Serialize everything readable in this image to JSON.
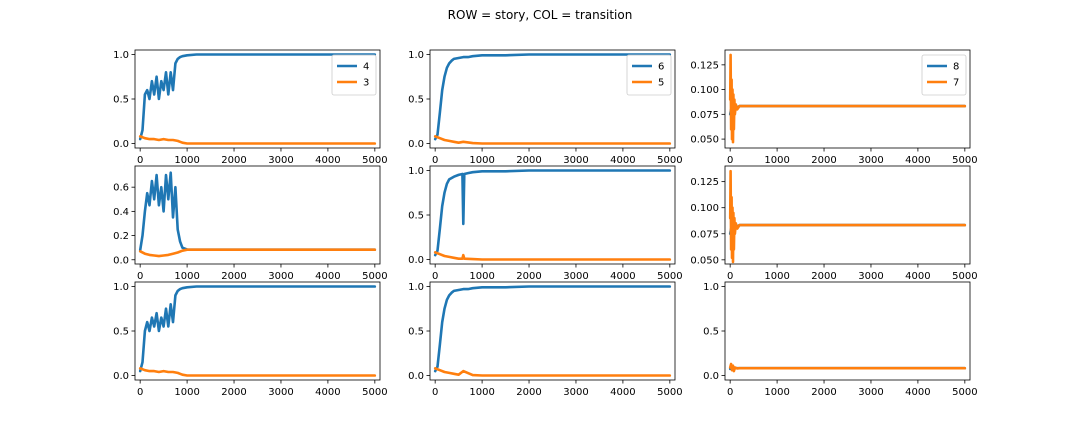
{
  "figure": {
    "title": "ROW = story, COL = transition",
    "colors": {
      "blue": "#1f77b4",
      "orange": "#ff7f0e"
    }
  },
  "chart_data": [
    {
      "type": "line",
      "row": 0,
      "col": 0,
      "xlim": [
        -110,
        5110
      ],
      "ylim": [
        -0.05,
        1.05
      ],
      "xticks": [
        0,
        1000,
        2000,
        3000,
        4000,
        5000
      ],
      "yticks": [
        0.0,
        0.5,
        1.0
      ],
      "ytick_labels": [
        "0.0",
        "0.5",
        "1.0"
      ],
      "legend": {
        "placement": "upper right",
        "entries": [
          "4",
          "3"
        ]
      },
      "series": [
        {
          "name": "4",
          "color": "#1f77b4",
          "x": [
            0,
            50,
            100,
            150,
            200,
            250,
            300,
            350,
            400,
            450,
            500,
            550,
            600,
            650,
            700,
            750,
            800,
            850,
            900,
            1000,
            1200,
            1500,
            2000,
            5000
          ],
          "y": [
            0.05,
            0.15,
            0.55,
            0.6,
            0.5,
            0.7,
            0.55,
            0.75,
            0.5,
            0.7,
            0.6,
            0.8,
            0.55,
            0.8,
            0.6,
            0.9,
            0.95,
            0.97,
            0.98,
            0.99,
            1.0,
            1.0,
            1.0,
            1.0
          ]
        },
        {
          "name": "3",
          "color": "#ff7f0e",
          "x": [
            0,
            100,
            200,
            300,
            400,
            500,
            600,
            700,
            800,
            850,
            900,
            1000,
            2000,
            5000
          ],
          "y": [
            0.08,
            0.06,
            0.05,
            0.05,
            0.04,
            0.05,
            0.04,
            0.04,
            0.03,
            0.02,
            0.01,
            0.0,
            0.0,
            0.0
          ]
        }
      ]
    },
    {
      "type": "line",
      "row": 0,
      "col": 1,
      "xlim": [
        -110,
        5110
      ],
      "ylim": [
        -0.05,
        1.05
      ],
      "xticks": [
        0,
        1000,
        2000,
        3000,
        4000,
        5000
      ],
      "yticks": [
        0.0,
        0.5,
        1.0
      ],
      "ytick_labels": [
        "0.0",
        "0.5",
        "1.0"
      ],
      "legend": {
        "placement": "upper right",
        "entries": [
          "6",
          "5"
        ]
      },
      "series": [
        {
          "name": "6",
          "color": "#1f77b4",
          "x": [
            0,
            50,
            100,
            150,
            200,
            250,
            300,
            350,
            400,
            500,
            600,
            700,
            800,
            1000,
            1500,
            2000,
            3000,
            5000
          ],
          "y": [
            0.05,
            0.1,
            0.35,
            0.6,
            0.75,
            0.85,
            0.9,
            0.93,
            0.95,
            0.96,
            0.97,
            0.97,
            0.98,
            0.99,
            0.99,
            1.0,
            1.0,
            1.0
          ]
        },
        {
          "name": "5",
          "color": "#ff7f0e",
          "x": [
            0,
            100,
            200,
            300,
            400,
            500,
            600,
            800,
            1000,
            2000,
            5000
          ],
          "y": [
            0.08,
            0.06,
            0.04,
            0.03,
            0.02,
            0.01,
            0.02,
            0.005,
            0.0,
            0.0,
            0.0
          ]
        }
      ]
    },
    {
      "type": "line",
      "row": 0,
      "col": 2,
      "xlim": [
        -110,
        5110
      ],
      "ylim": [
        0.041,
        0.14
      ],
      "xticks": [
        0,
        1000,
        2000,
        3000,
        4000,
        5000
      ],
      "yticks": [
        0.05,
        0.075,
        0.1,
        0.125
      ],
      "ytick_labels": [
        "0.050",
        "0.075",
        "0.100",
        "0.125"
      ],
      "legend": {
        "placement": "upper right",
        "entries": [
          "8",
          "7"
        ]
      },
      "series": [
        {
          "name": "8",
          "color": "#1f77b4",
          "x": [
            0,
            20,
            40,
            60,
            80,
            100,
            150,
            200,
            300,
            500,
            5000
          ],
          "y": [
            0.075,
            0.08,
            0.077,
            0.082,
            0.079,
            0.083,
            0.082,
            0.0833,
            0.0833,
            0.0833,
            0.0833
          ]
        },
        {
          "name": "7",
          "color": "#ff7f0e",
          "x": [
            0,
            10,
            20,
            30,
            40,
            50,
            60,
            70,
            80,
            90,
            100,
            120,
            150,
            200,
            300,
            5000
          ],
          "y": [
            0.09,
            0.135,
            0.06,
            0.11,
            0.05,
            0.1,
            0.047,
            0.095,
            0.06,
            0.09,
            0.075,
            0.085,
            0.08,
            0.0833,
            0.0833,
            0.0833
          ]
        }
      ]
    },
    {
      "type": "line",
      "row": 1,
      "col": 0,
      "xlim": [
        -110,
        5110
      ],
      "ylim": [
        -0.035,
        0.775
      ],
      "xticks": [
        0,
        1000,
        2000,
        3000,
        4000,
        5000
      ],
      "yticks": [
        0.0,
        0.2,
        0.4,
        0.6
      ],
      "ytick_labels": [
        "0.0",
        "0.2",
        "0.4",
        "0.6"
      ],
      "legend": null,
      "series": [
        {
          "name": "",
          "color": "#1f77b4",
          "x": [
            0,
            50,
            100,
            150,
            200,
            250,
            300,
            350,
            400,
            450,
            500,
            550,
            600,
            650,
            700,
            750,
            800,
            850,
            900,
            1000,
            2000,
            5000
          ],
          "y": [
            0.08,
            0.2,
            0.4,
            0.55,
            0.45,
            0.65,
            0.5,
            0.7,
            0.45,
            0.6,
            0.4,
            0.7,
            0.5,
            0.72,
            0.35,
            0.6,
            0.25,
            0.15,
            0.1,
            0.085,
            0.083,
            0.083
          ]
        },
        {
          "name": "",
          "color": "#ff7f0e",
          "x": [
            0,
            100,
            200,
            300,
            400,
            500,
            600,
            700,
            800,
            900,
            1000,
            2000,
            5000
          ],
          "y": [
            0.07,
            0.05,
            0.04,
            0.035,
            0.03,
            0.035,
            0.04,
            0.05,
            0.06,
            0.075,
            0.083,
            0.083,
            0.083
          ]
        }
      ]
    },
    {
      "type": "line",
      "row": 1,
      "col": 1,
      "xlim": [
        -110,
        5110
      ],
      "ylim": [
        -0.05,
        1.05
      ],
      "xticks": [
        0,
        1000,
        2000,
        3000,
        4000,
        5000
      ],
      "yticks": [
        0.0,
        0.5,
        1.0
      ],
      "ytick_labels": [
        "0.0",
        "0.5",
        "1.0"
      ],
      "legend": null,
      "series": [
        {
          "name": "",
          "color": "#1f77b4",
          "x": [
            0,
            50,
            100,
            150,
            200,
            250,
            300,
            400,
            500,
            580,
            600,
            620,
            700,
            800,
            1000,
            1500,
            2000,
            3000,
            5000
          ],
          "y": [
            0.05,
            0.1,
            0.35,
            0.6,
            0.75,
            0.85,
            0.9,
            0.93,
            0.95,
            0.96,
            0.4,
            0.96,
            0.97,
            0.98,
            0.99,
            0.99,
            1.0,
            1.0,
            1.0
          ]
        },
        {
          "name": "",
          "color": "#ff7f0e",
          "x": [
            0,
            100,
            200,
            300,
            400,
            500,
            580,
            600,
            620,
            800,
            1000,
            2000,
            5000
          ],
          "y": [
            0.08,
            0.06,
            0.04,
            0.03,
            0.02,
            0.01,
            0.01,
            0.05,
            0.01,
            0.005,
            0.0,
            0.0,
            0.0
          ]
        }
      ]
    },
    {
      "type": "line",
      "row": 1,
      "col": 2,
      "xlim": [
        -110,
        5110
      ],
      "ylim": [
        0.046,
        0.14
      ],
      "xticks": [
        0,
        1000,
        2000,
        3000,
        4000,
        5000
      ],
      "yticks": [
        0.05,
        0.075,
        0.1,
        0.125
      ],
      "ytick_labels": [
        "0.050",
        "0.075",
        "0.100",
        "0.125"
      ],
      "legend": null,
      "series": [
        {
          "name": "",
          "color": "#1f77b4",
          "x": [
            0,
            20,
            40,
            60,
            80,
            100,
            150,
            200,
            300,
            500,
            5000
          ],
          "y": [
            0.075,
            0.08,
            0.077,
            0.082,
            0.079,
            0.083,
            0.082,
            0.0833,
            0.0833,
            0.0833,
            0.0833
          ]
        },
        {
          "name": "",
          "color": "#ff7f0e",
          "x": [
            0,
            10,
            20,
            30,
            40,
            50,
            60,
            70,
            80,
            90,
            100,
            120,
            150,
            200,
            300,
            5000
          ],
          "y": [
            0.09,
            0.135,
            0.06,
            0.11,
            0.052,
            0.1,
            0.048,
            0.095,
            0.06,
            0.09,
            0.075,
            0.085,
            0.08,
            0.0833,
            0.0833,
            0.0833
          ]
        }
      ]
    },
    {
      "type": "line",
      "row": 2,
      "col": 0,
      "xlim": [
        -110,
        5110
      ],
      "ylim": [
        -0.05,
        1.05
      ],
      "xticks": [
        0,
        1000,
        2000,
        3000,
        4000,
        5000
      ],
      "yticks": [
        0.0,
        0.5,
        1.0
      ],
      "ytick_labels": [
        "0.0",
        "0.5",
        "1.0"
      ],
      "legend": null,
      "series": [
        {
          "name": "",
          "color": "#1f77b4",
          "x": [
            0,
            50,
            100,
            150,
            200,
            250,
            300,
            350,
            400,
            450,
            500,
            550,
            600,
            650,
            700,
            750,
            800,
            850,
            900,
            1000,
            1200,
            1500,
            2000,
            5000
          ],
          "y": [
            0.05,
            0.15,
            0.5,
            0.6,
            0.5,
            0.65,
            0.55,
            0.7,
            0.5,
            0.65,
            0.55,
            0.75,
            0.55,
            0.8,
            0.6,
            0.9,
            0.95,
            0.97,
            0.98,
            0.99,
            1.0,
            1.0,
            1.0,
            1.0
          ]
        },
        {
          "name": "",
          "color": "#ff7f0e",
          "x": [
            0,
            100,
            200,
            300,
            400,
            500,
            600,
            700,
            800,
            850,
            900,
            1000,
            2000,
            5000
          ],
          "y": [
            0.08,
            0.06,
            0.05,
            0.05,
            0.04,
            0.05,
            0.04,
            0.04,
            0.03,
            0.02,
            0.01,
            0.0,
            0.0,
            0.0
          ]
        }
      ]
    },
    {
      "type": "line",
      "row": 2,
      "col": 1,
      "xlim": [
        -110,
        5110
      ],
      "ylim": [
        -0.05,
        1.05
      ],
      "xticks": [
        0,
        1000,
        2000,
        3000,
        4000,
        5000
      ],
      "yticks": [
        0.0,
        0.5,
        1.0
      ],
      "ytick_labels": [
        "0.0",
        "0.5",
        "1.0"
      ],
      "legend": null,
      "series": [
        {
          "name": "",
          "color": "#1f77b4",
          "x": [
            0,
            50,
            100,
            150,
            200,
            250,
            300,
            350,
            400,
            500,
            600,
            700,
            800,
            1000,
            1500,
            2000,
            3000,
            5000
          ],
          "y": [
            0.05,
            0.1,
            0.35,
            0.6,
            0.75,
            0.85,
            0.9,
            0.93,
            0.95,
            0.96,
            0.97,
            0.97,
            0.98,
            0.99,
            0.99,
            1.0,
            1.0,
            1.0
          ]
        },
        {
          "name": "",
          "color": "#ff7f0e",
          "x": [
            0,
            100,
            200,
            300,
            400,
            500,
            600,
            800,
            1000,
            2000,
            5000
          ],
          "y": [
            0.08,
            0.06,
            0.04,
            0.03,
            0.02,
            0.01,
            0.05,
            0.005,
            0.0,
            0.0,
            0.0
          ]
        }
      ]
    },
    {
      "type": "line",
      "row": 2,
      "col": 2,
      "xlim": [
        -110,
        5110
      ],
      "ylim": [
        -0.05,
        1.05
      ],
      "xticks": [
        0,
        1000,
        2000,
        3000,
        4000,
        5000
      ],
      "yticks": [
        0.0,
        0.5,
        1.0
      ],
      "ytick_labels": [
        "0.0",
        "0.5",
        "1.0"
      ],
      "legend": null,
      "series": [
        {
          "name": "",
          "color": "#1f77b4",
          "x": [
            0,
            50,
            100,
            200,
            5000
          ],
          "y": [
            0.075,
            0.082,
            0.083,
            0.083,
            0.083
          ]
        },
        {
          "name": "",
          "color": "#ff7f0e",
          "x": [
            0,
            20,
            40,
            60,
            80,
            100,
            150,
            200,
            5000
          ],
          "y": [
            0.09,
            0.13,
            0.06,
            0.11,
            0.05,
            0.09,
            0.08,
            0.083,
            0.083
          ]
        }
      ]
    }
  ]
}
